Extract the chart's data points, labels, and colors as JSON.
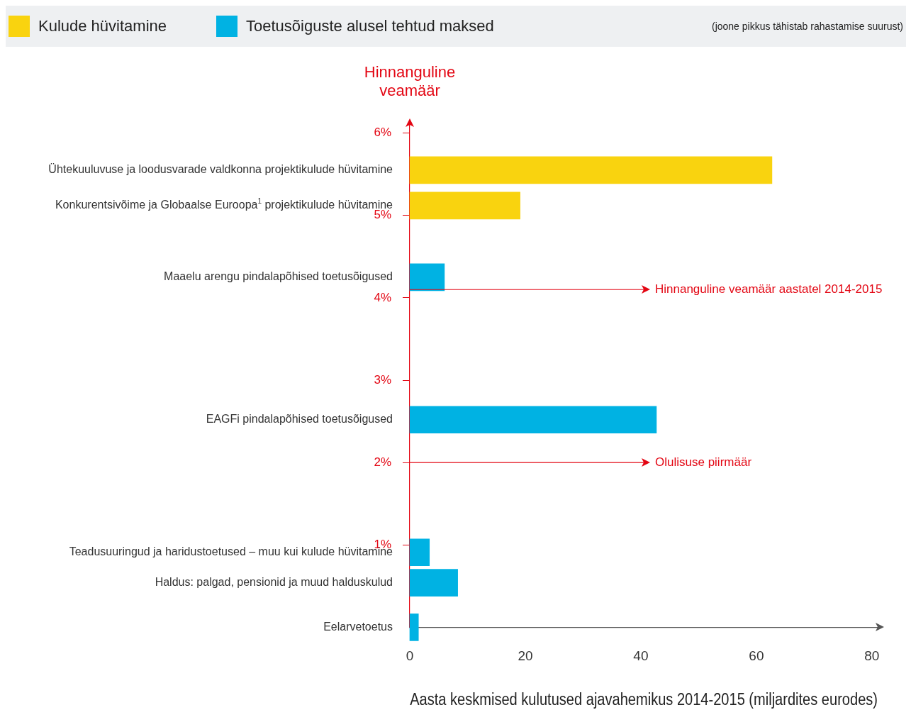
{
  "chart_data": {
    "type": "bar",
    "orientation": "horizontal",
    "series": [
      {
        "name": "Kulude hüvitamine",
        "color": "#f9d30f",
        "x": [
          5.55,
          5.12
        ],
        "values": [
          62.7,
          19.1
        ]
      },
      {
        "name": "Toetusõiguste alusel tehtud maksed",
        "color": "#00b2e3",
        "x": [
          4.25,
          2.52,
          0.91,
          0.54,
          0
        ],
        "values": [
          6,
          42.7,
          3.4,
          8.3,
          1.5
        ]
      }
    ],
    "xlim": [
      0,
      81
    ],
    "xticks": [
      0,
      20,
      40,
      60,
      80
    ],
    "ylim": [
      0,
      6.1
    ],
    "yticks": [
      {
        "value": 1,
        "label": "1%"
      },
      {
        "value": 2,
        "label": "2%"
      },
      {
        "value": 3,
        "label": "3%"
      },
      {
        "value": 4,
        "label": "4%"
      },
      {
        "value": 5,
        "label": "5%"
      },
      {
        "value": 6,
        "label": "6%"
      }
    ],
    "xlabel": "Aasta keskmised kulutused ajavahemikus 2014-2015 (miljardites eurodes)",
    "ylabel": "Hinnanguline veamäär",
    "ref_lines": [
      {
        "axis": "y",
        "value": 4.1,
        "label": "Hinnanguline veamäär aastatel 2014-2015",
        "color": "#e30613"
      },
      {
        "axis": "y",
        "value": 2,
        "label": "Olulisuse piirmäär",
        "color": "#e30613"
      }
    ],
    "annotations": [
      "(joone pikkus tähistab rahastamise suurust)",
      "Ühtekuuluvuse ja loodusvarade valdkonna projektikulude hüvitamine",
      "Konkurentsivõime ja Globaalse Euroopa$^{1}$ projektikulude hüvitamine",
      "Maaelu arengu pindalapõhised toetusõigused",
      "EAGFi pindalapõhised toetusõigused",
      "Teadusuuringud ja haridustoetused – muu kui kulude hüvitamine",
      "Haldus: palgad, pensionid ja muud halduskulud",
      "Eelarvetoetus"
    ],
    "legend": "top",
    "grid": false
  }
}
